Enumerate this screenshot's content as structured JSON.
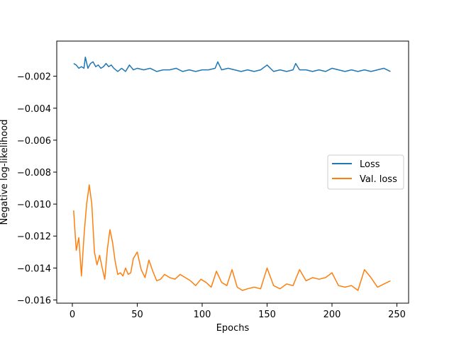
{
  "chart_data": {
    "type": "line",
    "title": "",
    "xlabel": "Epochs",
    "ylabel": "Negative log-likelihood",
    "xlim": [
      -12,
      259
    ],
    "ylim": [
      -0.0162,
      0.0002
    ],
    "xticks": [
      0,
      50,
      100,
      150,
      200,
      250
    ],
    "xtick_labels": [
      "0",
      "50",
      "100",
      "150",
      "200",
      "250"
    ],
    "yticks": [
      -0.002,
      -0.004,
      -0.006,
      -0.008,
      -0.01,
      -0.012,
      -0.014,
      -0.016
    ],
    "ytick_labels": [
      "−0.002",
      "−0.004",
      "−0.006",
      "−0.008",
      "−0.010",
      "−0.012",
      "−0.014",
      "−0.016"
    ],
    "grid": false,
    "legend_position": "center-right",
    "series": [
      {
        "name": "Loss",
        "color": "#1f77b4",
        "x": [
          1,
          3,
          5,
          7,
          9,
          10,
          12,
          14,
          16,
          18,
          20,
          22,
          24,
          26,
          28,
          30,
          32,
          35,
          38,
          41,
          44,
          47,
          50,
          55,
          60,
          65,
          70,
          75,
          80,
          85,
          90,
          95,
          100,
          105,
          110,
          112,
          115,
          120,
          125,
          130,
          135,
          140,
          145,
          150,
          155,
          160,
          165,
          170,
          172,
          175,
          180,
          185,
          190,
          195,
          200,
          205,
          210,
          215,
          220,
          225,
          230,
          235,
          240,
          245
        ],
        "y": [
          -0.0012,
          -0.0013,
          -0.0015,
          -0.0014,
          -0.0015,
          -0.0008,
          -0.0015,
          -0.0012,
          -0.0011,
          -0.0014,
          -0.0013,
          -0.0015,
          -0.0014,
          -0.0012,
          -0.0014,
          -0.0013,
          -0.0015,
          -0.0017,
          -0.0015,
          -0.0017,
          -0.0013,
          -0.0016,
          -0.0015,
          -0.0016,
          -0.0015,
          -0.0017,
          -0.0016,
          -0.0016,
          -0.0015,
          -0.0017,
          -0.0016,
          -0.0017,
          -0.0016,
          -0.0016,
          -0.0015,
          -0.0011,
          -0.0016,
          -0.0015,
          -0.0016,
          -0.0017,
          -0.0016,
          -0.0017,
          -0.0016,
          -0.0013,
          -0.0017,
          -0.0016,
          -0.0017,
          -0.0016,
          -0.0012,
          -0.0016,
          -0.0016,
          -0.0017,
          -0.0016,
          -0.0017,
          -0.0015,
          -0.0016,
          -0.0017,
          -0.0016,
          -0.0017,
          -0.0016,
          -0.0017,
          -0.0016,
          -0.0015,
          -0.0017
        ]
      },
      {
        "name": "Val. loss",
        "color": "#ff7f0e",
        "x": [
          1,
          3,
          5,
          7,
          9,
          11,
          13,
          15,
          17,
          19,
          21,
          23,
          25,
          27,
          29,
          31,
          33,
          35,
          37,
          39,
          41,
          43,
          45,
          47,
          50,
          53,
          56,
          59,
          62,
          65,
          68,
          71,
          75,
          79,
          83,
          87,
          91,
          95,
          99,
          103,
          107,
          111,
          115,
          119,
          123,
          127,
          131,
          135,
          140,
          145,
          150,
          155,
          160,
          165,
          170,
          175,
          180,
          185,
          190,
          195,
          200,
          205,
          210,
          215,
          220,
          225,
          230,
          235,
          240,
          245
        ],
        "y": [
          -0.0104,
          -0.0129,
          -0.0121,
          -0.0145,
          -0.012,
          -0.01,
          -0.0088,
          -0.01,
          -0.013,
          -0.0138,
          -0.0132,
          -0.014,
          -0.0147,
          -0.0128,
          -0.0116,
          -0.0124,
          -0.0136,
          -0.0144,
          -0.0143,
          -0.0145,
          -0.014,
          -0.0144,
          -0.0143,
          -0.0134,
          -0.013,
          -0.0141,
          -0.0146,
          -0.0135,
          -0.0142,
          -0.0148,
          -0.0147,
          -0.0144,
          -0.0146,
          -0.0147,
          -0.0144,
          -0.0146,
          -0.0148,
          -0.0151,
          -0.0147,
          -0.0149,
          -0.0152,
          -0.0142,
          -0.0149,
          -0.0151,
          -0.0141,
          -0.0152,
          -0.0154,
          -0.0153,
          -0.0152,
          -0.0153,
          -0.014,
          -0.0151,
          -0.0153,
          -0.015,
          -0.0151,
          -0.0141,
          -0.0148,
          -0.0146,
          -0.0147,
          -0.0146,
          -0.0143,
          -0.0151,
          -0.0152,
          -0.0151,
          -0.0154,
          -0.0141,
          -0.0146,
          -0.0152,
          -0.015,
          -0.0148
        ]
      }
    ]
  }
}
